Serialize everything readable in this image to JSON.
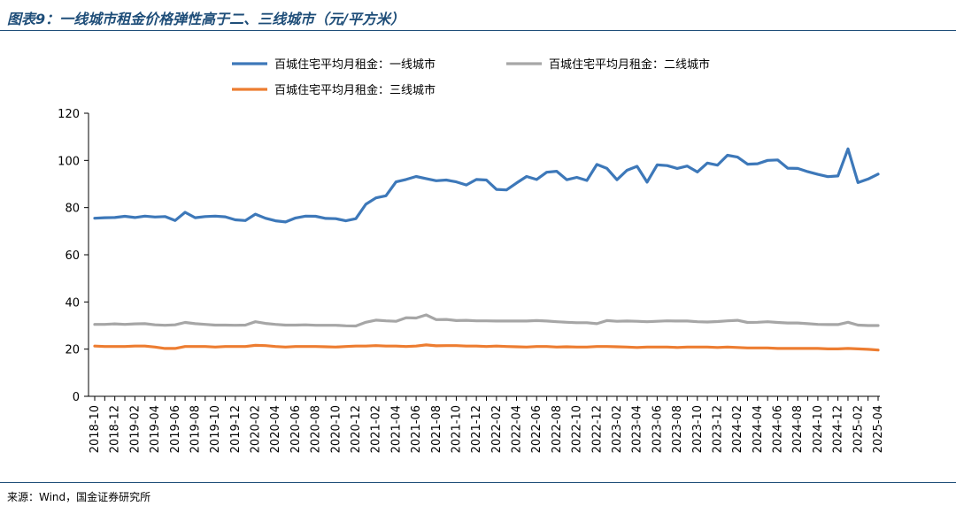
{
  "figure": {
    "title": "图表9：一线城市租金价格弹性高于二、三线城市（元/平方米）",
    "source": "来源：Wind，国金证券研究所"
  },
  "chart_data": {
    "type": "line",
    "ylim": [
      0,
      120
    ],
    "yticks": [
      0,
      20,
      40,
      60,
      80,
      100,
      120
    ],
    "grid": false,
    "legend_position": "top",
    "x": [
      "2018-10",
      "2018-11",
      "2018-12",
      "2019-01",
      "2019-02",
      "2019-03",
      "2019-04",
      "2019-05",
      "2019-06",
      "2019-07",
      "2019-08",
      "2019-09",
      "2019-10",
      "2019-11",
      "2019-12",
      "2020-01",
      "2020-02",
      "2020-03",
      "2020-04",
      "2020-05",
      "2020-06",
      "2020-07",
      "2020-08",
      "2020-09",
      "2020-10",
      "2020-11",
      "2020-12",
      "2021-01",
      "2021-02",
      "2021-03",
      "2021-04",
      "2021-05",
      "2021-06",
      "2021-07",
      "2021-08",
      "2021-09",
      "2021-10",
      "2021-11",
      "2021-12",
      "2022-01",
      "2022-02",
      "2022-03",
      "2022-04",
      "2022-05",
      "2022-06",
      "2022-07",
      "2022-08",
      "2022-09",
      "2022-10",
      "2022-11",
      "2022-12",
      "2023-01",
      "2023-02",
      "2023-03",
      "2023-04",
      "2023-05",
      "2023-06",
      "2023-07",
      "2023-08",
      "2023-09",
      "2023-10",
      "2023-11",
      "2023-12",
      "2024-01",
      "2024-02",
      "2024-03",
      "2024-04",
      "2024-05",
      "2024-06",
      "2024-07",
      "2024-08",
      "2024-09",
      "2024-10",
      "2024-11",
      "2024-12",
      "2025-01",
      "2025-02",
      "2025-03",
      "2025-04"
    ],
    "tick_labels": [
      "2018-10",
      "2018-12",
      "2019-02",
      "2019-04",
      "2019-06",
      "2019-08",
      "2019-10",
      "2019-12",
      "2020-02",
      "2020-04",
      "2020-06",
      "2020-08",
      "2020-10",
      "2020-12",
      "2021-02",
      "2021-04",
      "2021-06",
      "2021-08",
      "2021-10",
      "2021-12",
      "2022-02",
      "2022-04",
      "2022-06",
      "2022-08",
      "2022-10",
      "2022-12",
      "2023-02",
      "2023-04",
      "2023-06",
      "2023-08",
      "2023-10",
      "2023-12",
      "2024-02",
      "2024-04",
      "2024-06",
      "2024-08",
      "2024-10",
      "2024-12",
      "2025-02",
      "2025-04"
    ],
    "series": [
      {
        "name": "百城住宅平均月租金：一线城市",
        "color": "#3d78b9",
        "values": [
          75.5,
          75.7,
          75.8,
          76.3,
          75.8,
          76.4,
          76.0,
          76.2,
          74.5,
          78.0,
          75.7,
          76.2,
          76.4,
          76.1,
          74.8,
          74.5,
          77.2,
          75.5,
          74.4,
          73.9,
          75.6,
          76.4,
          76.3,
          75.4,
          75.3,
          74.4,
          75.3,
          81.4,
          84.1,
          85.0,
          90.9,
          91.9,
          93.2,
          92.3,
          91.4,
          91.7,
          90.9,
          89.6,
          91.9,
          91.7,
          87.7,
          87.5,
          90.4,
          93.2,
          91.9,
          95.0,
          95.4,
          91.8,
          92.8,
          91.5,
          98.3,
          96.6,
          91.8,
          95.8,
          97.5,
          90.8,
          98.1,
          97.8,
          96.6,
          97.6,
          95.1,
          98.9,
          98.0,
          102.2,
          101.4,
          98.4,
          98.6,
          100.0,
          100.2,
          96.7,
          96.6,
          95.2,
          94.1,
          93.1,
          93.4,
          104.9,
          90.6,
          92.1,
          94.2
        ]
      },
      {
        "name": "百城住宅平均月租金：二线城市",
        "color": "#a6a6a6",
        "values": [
          30.5,
          30.5,
          30.7,
          30.5,
          30.7,
          30.8,
          30.3,
          30.1,
          30.3,
          31.3,
          30.8,
          30.5,
          30.2,
          30.2,
          30.1,
          30.2,
          31.6,
          30.9,
          30.5,
          30.2,
          30.2,
          30.3,
          30.1,
          30.1,
          30.1,
          29.9,
          29.8,
          31.4,
          32.3,
          32.0,
          31.8,
          33.3,
          33.2,
          34.5,
          32.5,
          32.6,
          32.1,
          32.2,
          32.0,
          32.0,
          31.9,
          31.9,
          31.9,
          31.9,
          32.1,
          31.9,
          31.6,
          31.4,
          31.2,
          31.2,
          30.8,
          32.1,
          31.8,
          31.9,
          31.8,
          31.6,
          31.8,
          32.0,
          31.9,
          31.9,
          31.6,
          31.5,
          31.7,
          32.0,
          32.2,
          31.3,
          31.4,
          31.6,
          31.3,
          31.1,
          31.1,
          30.8,
          30.5,
          30.4,
          30.4,
          31.4,
          30.2,
          30.0,
          30.0
        ]
      },
      {
        "name": "百城住宅平均月租金：三线城市",
        "color": "#ed7d31",
        "values": [
          21.3,
          21.1,
          21.1,
          21.1,
          21.3,
          21.3,
          20.9,
          20.3,
          20.3,
          21.1,
          21.1,
          21.1,
          20.9,
          21.1,
          21.1,
          21.1,
          21.6,
          21.5,
          21.1,
          20.9,
          21.1,
          21.1,
          21.1,
          21.0,
          20.9,
          21.1,
          21.3,
          21.3,
          21.5,
          21.3,
          21.3,
          21.1,
          21.3,
          21.8,
          21.4,
          21.5,
          21.5,
          21.3,
          21.3,
          21.1,
          21.3,
          21.1,
          21.0,
          20.9,
          21.1,
          21.1,
          20.9,
          21.0,
          20.9,
          20.9,
          21.1,
          21.1,
          21.0,
          20.9,
          20.7,
          20.9,
          20.9,
          20.9,
          20.7,
          20.9,
          20.9,
          20.9,
          20.7,
          20.9,
          20.7,
          20.5,
          20.5,
          20.5,
          20.3,
          20.3,
          20.3,
          20.3,
          20.3,
          20.1,
          20.1,
          20.3,
          20.1,
          19.9,
          19.6
        ]
      }
    ]
  }
}
